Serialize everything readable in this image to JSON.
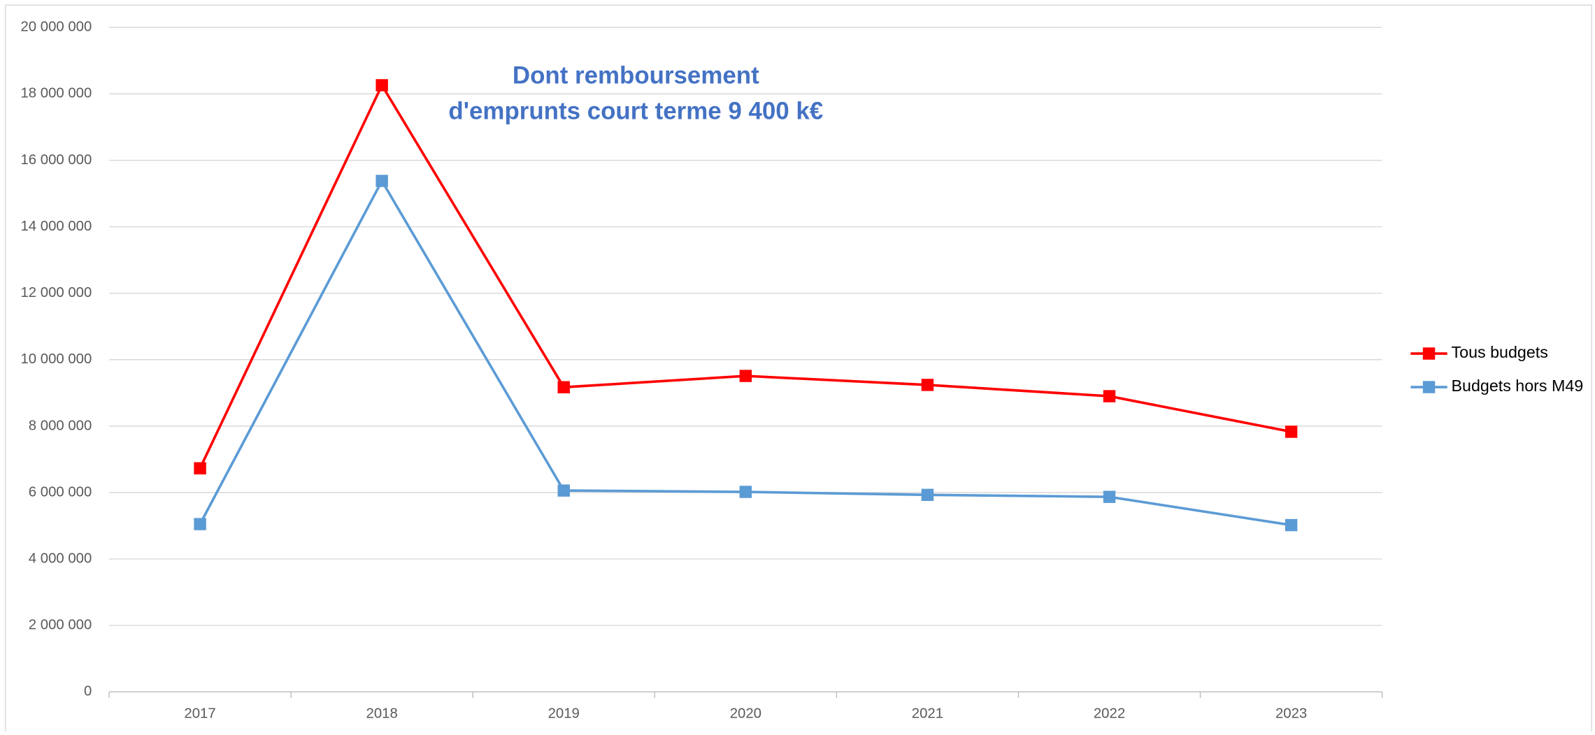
{
  "chart_data": {
    "type": "line",
    "annotation": [
      "Dont remboursement",
      "d'emprunts court terme 9 400 k€"
    ],
    "categories": [
      "2017",
      "2018",
      "2019",
      "2020",
      "2021",
      "2022",
      "2023"
    ],
    "series": [
      {
        "name": "Tous budgets",
        "color": "#ff0000",
        "values": [
          6730000,
          18260000,
          9170000,
          9510000,
          9240000,
          8900000,
          7830000
        ]
      },
      {
        "name": "Budgets hors M49",
        "color": "#5b9bd5",
        "values": [
          5050000,
          15380000,
          6060000,
          6020000,
          5930000,
          5870000,
          5020000
        ]
      }
    ],
    "ylim": [
      0,
      20000000
    ],
    "yticks": [
      0,
      {
        "value": 2000000,
        "label": "2 000 000"
      },
      {
        "value": 4000000,
        "label": "4 000 000"
      },
      {
        "value": 6000000,
        "label": "6 000 000"
      },
      {
        "value": 8000000,
        "label": "8 000 000"
      },
      {
        "value": 10000000,
        "label": "10 000 000"
      },
      {
        "value": 12000000,
        "label": "12 000 000"
      },
      {
        "value": 14000000,
        "label": "14 000 000"
      },
      {
        "value": 16000000,
        "label": "16 000 000"
      },
      {
        "value": 18000000,
        "label": "18 000 000"
      },
      {
        "value": 20000000,
        "label": "20 000 000"
      }
    ],
    "grid": true,
    "legend": "right"
  }
}
